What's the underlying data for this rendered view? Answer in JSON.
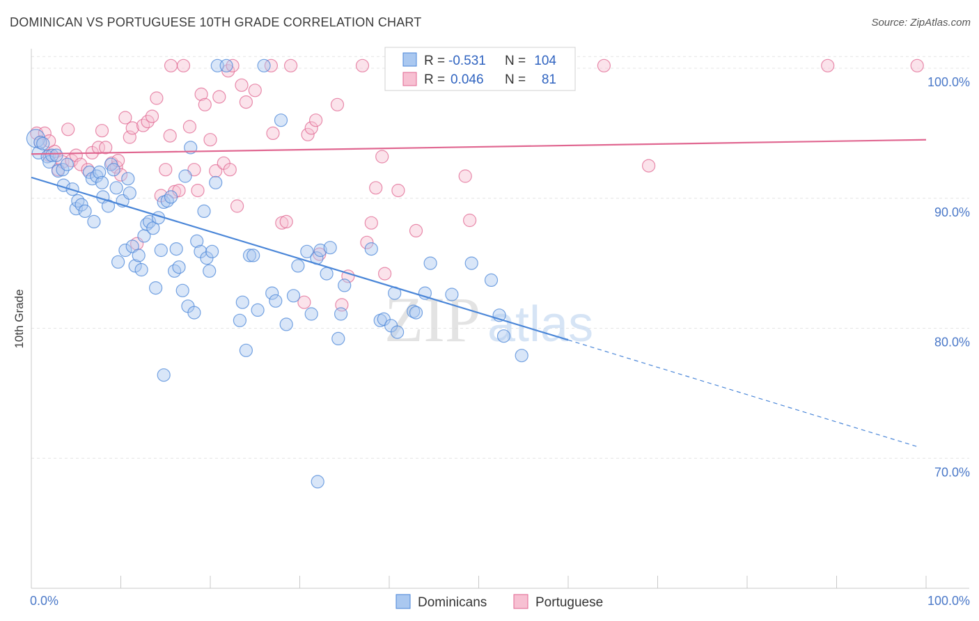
{
  "header": {
    "title": "DOMINICAN VS PORTUGUESE 10TH GRADE CORRELATION CHART",
    "source": "Source: ZipAtlas.com"
  },
  "legend": {
    "r_label": "R =",
    "n_label": "N =",
    "series": [
      {
        "r": "-0.531",
        "n": "104"
      },
      {
        "r": "0.046",
        "n": "81"
      }
    ]
  },
  "watermark": {
    "zip": "ZIP",
    "atlas": "atlas"
  },
  "colors": {
    "blue": "#4a86d8",
    "blue_fill": "#aac8f0",
    "pink": "#e06690",
    "pink_fill": "#f7c0d2",
    "tick": "#4a78c8"
  },
  "chart_data": {
    "type": "scatter",
    "xlabel": "",
    "ylabel": "10th Grade",
    "xlim": [
      0,
      100
    ],
    "ylim": [
      60,
      101.5
    ],
    "x_tick_labels": [
      {
        "value": 0,
        "label": "0.0%"
      },
      {
        "value": 100,
        "label": "100.0%"
      }
    ],
    "y_tick_labels": [
      {
        "value": 70,
        "label": "70.0%"
      },
      {
        "value": 80,
        "label": "80.0%"
      },
      {
        "value": 90,
        "label": "90.0%"
      },
      {
        "value": 100,
        "label": "100.0%"
      }
    ],
    "grid": true,
    "legend_position": "top-center",
    "series": [
      {
        "name": "Dominicans",
        "color": "#4a86d8",
        "trend": {
          "x0": 0,
          "y0": 91.6,
          "x1": 60,
          "y1": 79.1,
          "dash_to_x": 99,
          "dash_to_y": 70.9
        },
        "points": [
          [
            0.5,
            94.6
          ],
          [
            0.8,
            93.5
          ],
          [
            1.0,
            94.3
          ],
          [
            1.3,
            94.2
          ],
          [
            1.8,
            93.2
          ],
          [
            2.0,
            92.8
          ],
          [
            2.3,
            93.3
          ],
          [
            2.8,
            93.3
          ],
          [
            3.0,
            92.1
          ],
          [
            3.5,
            92.2
          ],
          [
            3.6,
            91.0
          ],
          [
            4.0,
            92.6
          ],
          [
            4.6,
            90.7
          ],
          [
            5.0,
            89.2
          ],
          [
            5.2,
            89.8
          ],
          [
            5.6,
            89.5
          ],
          [
            6.0,
            89.0
          ],
          [
            6.5,
            92.0
          ],
          [
            6.8,
            91.5
          ],
          [
            7.0,
            88.2
          ],
          [
            7.3,
            91.7
          ],
          [
            7.6,
            92.0
          ],
          [
            7.9,
            91.2
          ],
          [
            8.0,
            90.1
          ],
          [
            8.6,
            89.4
          ],
          [
            8.9,
            92.6
          ],
          [
            9.2,
            92.2
          ],
          [
            9.5,
            90.8
          ],
          [
            9.7,
            85.1
          ],
          [
            10.2,
            89.8
          ],
          [
            10.5,
            86.0
          ],
          [
            10.8,
            91.5
          ],
          [
            11.0,
            90.4
          ],
          [
            11.3,
            86.3
          ],
          [
            11.6,
            84.8
          ],
          [
            12.0,
            85.6
          ],
          [
            12.3,
            84.5
          ],
          [
            12.6,
            87.1
          ],
          [
            12.9,
            88.0
          ],
          [
            13.2,
            88.2
          ],
          [
            13.6,
            87.7
          ],
          [
            13.9,
            83.1
          ],
          [
            14.2,
            88.5
          ],
          [
            14.5,
            86.0
          ],
          [
            14.8,
            89.7
          ],
          [
            15.2,
            89.8
          ],
          [
            15.6,
            90.1
          ],
          [
            16.0,
            84.4
          ],
          [
            16.2,
            86.1
          ],
          [
            16.5,
            84.7
          ],
          [
            16.9,
            82.9
          ],
          [
            17.2,
            91.7
          ],
          [
            17.5,
            81.7
          ],
          [
            17.8,
            93.9
          ],
          [
            18.2,
            81.2
          ],
          [
            18.5,
            86.7
          ],
          [
            18.9,
            85.9
          ],
          [
            19.3,
            89.0
          ],
          [
            19.6,
            85.4
          ],
          [
            19.9,
            84.4
          ],
          [
            20.2,
            85.9
          ],
          [
            20.6,
            91.2
          ],
          [
            20.8,
            100.2
          ],
          [
            21.8,
            100.2
          ],
          [
            23.3,
            80.6
          ],
          [
            23.6,
            82.0
          ],
          [
            24.0,
            78.3
          ],
          [
            24.4,
            85.6
          ],
          [
            24.8,
            85.6
          ],
          [
            25.3,
            81.4
          ],
          [
            26.0,
            100.2
          ],
          [
            26.9,
            82.7
          ],
          [
            27.3,
            82.1
          ],
          [
            27.9,
            96.0
          ],
          [
            28.5,
            80.3
          ],
          [
            29.3,
            82.5
          ],
          [
            29.8,
            84.8
          ],
          [
            30.8,
            85.9
          ],
          [
            31.3,
            81.1
          ],
          [
            31.9,
            85.4
          ],
          [
            32.3,
            86.0
          ],
          [
            33.0,
            84.2
          ],
          [
            33.4,
            86.2
          ],
          [
            34.3,
            79.2
          ],
          [
            34.6,
            81.1
          ],
          [
            35.0,
            83.3
          ],
          [
            38.0,
            86.1
          ],
          [
            39.0,
            80.6
          ],
          [
            39.4,
            80.7
          ],
          [
            40.2,
            80.2
          ],
          [
            40.6,
            82.7
          ],
          [
            40.9,
            79.7
          ],
          [
            42.7,
            81.3
          ],
          [
            43.0,
            81.2
          ],
          [
            44.0,
            82.7
          ],
          [
            44.6,
            85.0
          ],
          [
            47.0,
            82.6
          ],
          [
            49.2,
            85.0
          ],
          [
            51.4,
            83.7
          ],
          [
            52.3,
            81.0
          ],
          [
            52.8,
            79.4
          ],
          [
            54.8,
            77.9
          ],
          [
            14.8,
            76.4
          ],
          [
            32.0,
            68.2
          ]
        ]
      },
      {
        "name": "Portuguese",
        "color": "#e06690",
        "trend": {
          "x0": 0,
          "y0": 93.4,
          "x1": 100,
          "y1": 94.5
        },
        "points": [
          [
            0.6,
            95.0
          ],
          [
            1.0,
            94.3
          ],
          [
            1.5,
            95.0
          ],
          [
            2.0,
            93.3
          ],
          [
            2.6,
            93.6
          ],
          [
            3.0,
            92.2
          ],
          [
            3.5,
            92.8
          ],
          [
            4.1,
            95.3
          ],
          [
            4.5,
            92.9
          ],
          [
            5.0,
            93.3
          ],
          [
            5.5,
            92.6
          ],
          [
            6.3,
            92.2
          ],
          [
            6.8,
            93.5
          ],
          [
            7.5,
            93.9
          ],
          [
            7.9,
            95.2
          ],
          [
            8.3,
            93.9
          ],
          [
            9.0,
            92.7
          ],
          [
            9.5,
            92.4
          ],
          [
            10.0,
            91.8
          ],
          [
            10.5,
            96.2
          ],
          [
            11.0,
            94.7
          ],
          [
            11.3,
            95.4
          ],
          [
            11.8,
            86.5
          ],
          [
            12.5,
            95.6
          ],
          [
            13.0,
            95.9
          ],
          [
            13.5,
            96.3
          ],
          [
            14.0,
            97.7
          ],
          [
            14.5,
            90.2
          ],
          [
            15.0,
            92.2
          ],
          [
            15.5,
            94.8
          ],
          [
            16.0,
            90.5
          ],
          [
            16.5,
            90.6
          ],
          [
            17.0,
            100.2
          ],
          [
            17.7,
            95.5
          ],
          [
            18.2,
            92.2
          ],
          [
            18.6,
            90.6
          ],
          [
            19.0,
            98.0
          ],
          [
            19.4,
            97.2
          ],
          [
            20.0,
            94.5
          ],
          [
            20.6,
            92.1
          ],
          [
            21.0,
            97.8
          ],
          [
            21.5,
            92.7
          ],
          [
            22.0,
            99.8
          ],
          [
            22.5,
            100.2
          ],
          [
            23.0,
            89.4
          ],
          [
            23.5,
            98.7
          ],
          [
            24.0,
            97.4
          ],
          [
            25.0,
            98.3
          ],
          [
            26.8,
            100.2
          ],
          [
            27.0,
            95.0
          ],
          [
            28.0,
            88.1
          ],
          [
            28.5,
            88.2
          ],
          [
            29.0,
            100.2
          ],
          [
            30.5,
            82.0
          ],
          [
            30.9,
            94.9
          ],
          [
            31.3,
            95.4
          ],
          [
            31.8,
            96.0
          ],
          [
            32.2,
            85.7
          ],
          [
            34.2,
            97.2
          ],
          [
            34.7,
            81.8
          ],
          [
            35.4,
            84.0
          ],
          [
            37.0,
            100.2
          ],
          [
            37.5,
            86.6
          ],
          [
            38.0,
            88.1
          ],
          [
            38.5,
            90.8
          ],
          [
            39.2,
            93.2
          ],
          [
            39.5,
            84.2
          ],
          [
            41.0,
            90.6
          ],
          [
            43.0,
            87.5
          ],
          [
            46.0,
            100.2
          ],
          [
            48.5,
            91.7
          ],
          [
            49.0,
            88.3
          ],
          [
            53.0,
            100.2
          ],
          [
            64.0,
            100.2
          ],
          [
            69.0,
            92.5
          ],
          [
            89.0,
            100.2
          ],
          [
            99.0,
            100.2
          ],
          [
            2.0,
            94.4
          ],
          [
            9.7,
            92.9
          ],
          [
            15.6,
            100.2
          ],
          [
            22.2,
            92.2
          ]
        ]
      }
    ]
  },
  "bottom_legend": {
    "items": [
      "Dominicans",
      "Portuguese"
    ]
  }
}
